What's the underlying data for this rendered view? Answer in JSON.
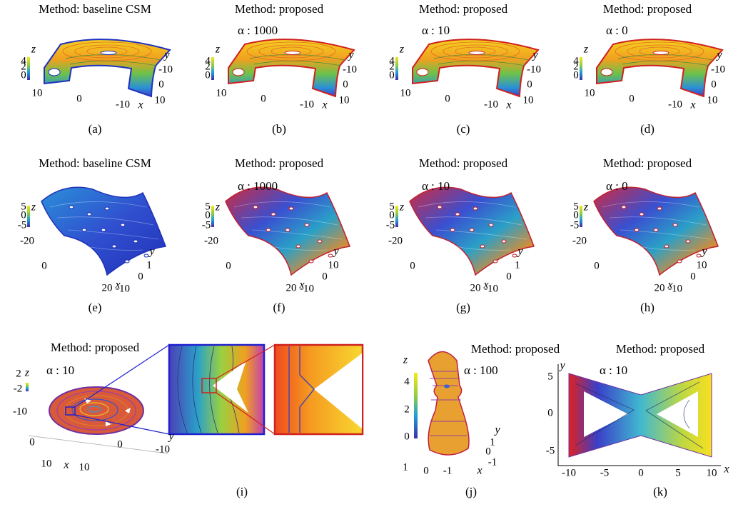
{
  "panels": [
    {
      "title": "Method: baseline CSM",
      "caption": "(a)",
      "z_label": "z",
      "z_ticks": [
        "4",
        "2",
        "0"
      ],
      "x_label": "x",
      "x_ticks": [
        "10",
        "0",
        "-10"
      ],
      "y_label": "y",
      "y_ticks": [
        "-10",
        "0",
        "10"
      ]
    },
    {
      "title": "Method: proposed",
      "alpha": "α :  1000",
      "caption": "(b)",
      "z_label": "z",
      "z_ticks": [
        "4",
        "2",
        "0"
      ],
      "x_label": "x",
      "x_ticks": [
        "10",
        "0",
        "-10"
      ],
      "y_label": "y",
      "y_ticks": [
        "-10",
        "0",
        "10"
      ]
    },
    {
      "title": "Method: proposed",
      "alpha": "α :  10",
      "caption": "(c)",
      "z_label": "z",
      "z_ticks": [
        "4",
        "2",
        "0"
      ],
      "x_label": "x",
      "x_ticks": [
        "10",
        "0",
        "-10"
      ],
      "y_label": "y",
      "y_ticks": [
        "-10",
        "0",
        "10"
      ]
    },
    {
      "title": "Method: proposed",
      "alpha": "α :  0",
      "caption": "(d)",
      "z_label": "z",
      "z_ticks": [
        "4",
        "2",
        "0"
      ],
      "x_label": "x",
      "x_ticks": [
        "10",
        "0",
        "-10"
      ],
      "y_label": "y",
      "y_ticks": [
        "-10",
        "0",
        "10"
      ]
    },
    {
      "title": "Method: baseline CSM",
      "caption": "(e)",
      "z_label": "z",
      "z_ticks": [
        "5",
        "0",
        "-5"
      ],
      "x_label": "x",
      "x_ticks": [
        "-20",
        "0",
        "20"
      ],
      "y_label": "y",
      "y_ticks": [
        "1",
        "0",
        "-10"
      ]
    },
    {
      "title": "Method: proposed",
      "alpha": "α :  1000",
      "caption": "(f)",
      "z_label": "z",
      "z_ticks": [
        "5",
        "0",
        "-5"
      ],
      "x_label": "x",
      "x_ticks": [
        "-20",
        "0",
        "20"
      ],
      "y_label": "y",
      "y_ticks": [
        "10",
        "0",
        "-10"
      ]
    },
    {
      "title": "Method: proposed",
      "alpha": "α :  10",
      "caption": "(g)",
      "z_label": "z",
      "z_ticks": [
        "5",
        "0",
        "-5"
      ],
      "x_label": "x",
      "x_ticks": [
        "-20",
        "0",
        "20"
      ],
      "y_label": "y",
      "y_ticks": [
        "1",
        "0",
        "-10"
      ]
    },
    {
      "title": "Method: proposed",
      "alpha": "α :  0",
      "caption": "(h)",
      "z_label": "z",
      "z_ticks": [
        "5",
        "0",
        "-5"
      ],
      "x_label": "x",
      "x_ticks": [
        "-20",
        "0",
        "20"
      ],
      "y_label": "y",
      "y_ticks": [
        "10",
        "0",
        "-10"
      ]
    },
    {
      "title": "Method: proposed",
      "alpha": "α :  10",
      "caption": "(i)",
      "z_label": "z",
      "z_ticks": [
        "2",
        "-2"
      ],
      "x_label": "x",
      "x_ticks": [
        "-10",
        "0",
        "10"
      ],
      "y_label": "y",
      "y_ticks": [
        "10",
        "0",
        "-10"
      ]
    },
    {
      "title": "Method: proposed",
      "alpha": "α :  100",
      "caption": "(j)",
      "z_label": "z",
      "z_ticks": [
        "4",
        "2",
        "0"
      ],
      "x_label": "x",
      "x_ticks": [
        "1",
        "0",
        "-1"
      ],
      "y_label": "y",
      "y_ticks": [
        "1",
        "0",
        "-1"
      ]
    },
    {
      "title": "Method: proposed",
      "alpha": "α :  10",
      "caption": "(k)",
      "x_label": "x",
      "x_ticks": [
        "-10",
        "-5",
        "0",
        "5",
        "10"
      ],
      "y_label": "y",
      "y_ticks": [
        "5",
        "0",
        "-5"
      ]
    }
  ]
}
